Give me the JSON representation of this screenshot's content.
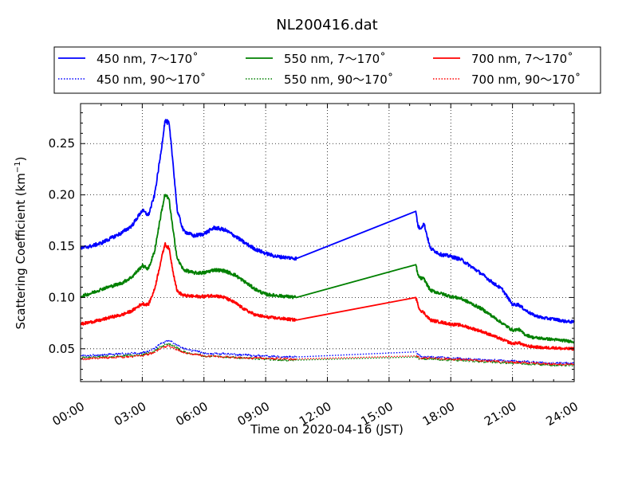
{
  "chart_data": {
    "type": "line",
    "title": "NL200416.dat",
    "xlabel": "Time on 2020-04-16 (JST)",
    "ylabel_main": "Scattering Coefficient (km",
    "ylabel_sup": "−1",
    "ylabel_close": ")",
    "xlim": [
      0,
      24
    ],
    "ylim": [
      0.018,
      0.289
    ],
    "x_ticks": [
      {
        "value": 0,
        "label": "00:00"
      },
      {
        "value": 3,
        "label": "03:00"
      },
      {
        "value": 6,
        "label": "06:00"
      },
      {
        "value": 9,
        "label": "09:00"
      },
      {
        "value": 12,
        "label": "12:00"
      },
      {
        "value": 15,
        "label": "15:00"
      },
      {
        "value": 18,
        "label": "18:00"
      },
      {
        "value": 21,
        "label": "21:00"
      },
      {
        "value": 24,
        "label": "24:00"
      }
    ],
    "y_ticks": [
      {
        "value": 0.05,
        "label": "0.05"
      },
      {
        "value": 0.1,
        "label": "0.10"
      },
      {
        "value": 0.15,
        "label": "0.15"
      },
      {
        "value": 0.2,
        "label": "0.20"
      },
      {
        "value": 0.25,
        "label": "0.25"
      }
    ],
    "grid": true,
    "legend_position": "top",
    "series": [
      {
        "name": "450 nm, 7～170˚",
        "color": "#0000ff",
        "style": "solid",
        "x": [
          0,
          0.5,
          1,
          1.5,
          2,
          2.5,
          3,
          3.3,
          3.6,
          3.9,
          4.1,
          4.3,
          4.5,
          4.7,
          5,
          5.5,
          6,
          6.5,
          7,
          7.5,
          8,
          8.5,
          9,
          9.5,
          10,
          10.5,
          16.3,
          16.4,
          16.5,
          16.7,
          17,
          17.5,
          18,
          18.5,
          19,
          19.5,
          20,
          20.5,
          21,
          21.3,
          21.6,
          22,
          22.5,
          23,
          23.5,
          24
        ],
        "y": [
          0.148,
          0.15,
          0.153,
          0.158,
          0.163,
          0.17,
          0.185,
          0.18,
          0.2,
          0.24,
          0.272,
          0.27,
          0.23,
          0.185,
          0.165,
          0.16,
          0.162,
          0.168,
          0.166,
          0.16,
          0.153,
          0.147,
          0.143,
          0.14,
          0.139,
          0.138,
          0.184,
          0.17,
          0.167,
          0.172,
          0.148,
          0.142,
          0.14,
          0.137,
          0.13,
          0.123,
          0.115,
          0.108,
          0.093,
          0.093,
          0.088,
          0.083,
          0.08,
          0.079,
          0.077,
          0.076
        ]
      },
      {
        "name": "550 nm, 7～170˚",
        "color": "#008000",
        "style": "solid",
        "x": [
          0,
          0.5,
          1,
          1.5,
          2,
          2.5,
          3,
          3.3,
          3.6,
          3.9,
          4.1,
          4.3,
          4.5,
          4.7,
          5,
          5.5,
          6,
          6.5,
          7,
          7.5,
          8,
          8.5,
          9,
          9.5,
          10,
          10.5,
          16.3,
          16.4,
          16.5,
          16.7,
          17,
          17.5,
          18,
          18.5,
          19,
          19.5,
          20,
          20.5,
          21,
          21.3,
          21.6,
          22,
          22.5,
          23,
          23.5,
          24
        ],
        "y": [
          0.101,
          0.104,
          0.108,
          0.111,
          0.114,
          0.12,
          0.131,
          0.128,
          0.145,
          0.18,
          0.2,
          0.196,
          0.165,
          0.138,
          0.127,
          0.124,
          0.124,
          0.127,
          0.126,
          0.122,
          0.115,
          0.108,
          0.103,
          0.102,
          0.101,
          0.1,
          0.132,
          0.122,
          0.119,
          0.118,
          0.107,
          0.104,
          0.101,
          0.099,
          0.094,
          0.089,
          0.082,
          0.075,
          0.068,
          0.069,
          0.064,
          0.061,
          0.06,
          0.059,
          0.058,
          0.057
        ]
      },
      {
        "name": "700 nm, 7～170˚",
        "color": "#ff0000",
        "style": "solid",
        "x": [
          0,
          0.5,
          1,
          1.5,
          2,
          2.5,
          3,
          3.3,
          3.6,
          3.9,
          4.1,
          4.3,
          4.5,
          4.7,
          5,
          5.5,
          6,
          6.5,
          7,
          7.5,
          8,
          8.5,
          9,
          9.5,
          10,
          10.5,
          16.3,
          16.4,
          16.5,
          16.7,
          17,
          17.5,
          18,
          18.5,
          19,
          19.5,
          20,
          20.5,
          21,
          21.3,
          21.6,
          22,
          22.5,
          23,
          23.5,
          24
        ],
        "y": [
          0.074,
          0.076,
          0.078,
          0.081,
          0.083,
          0.087,
          0.094,
          0.093,
          0.108,
          0.135,
          0.152,
          0.148,
          0.125,
          0.106,
          0.102,
          0.101,
          0.101,
          0.102,
          0.1,
          0.095,
          0.088,
          0.083,
          0.081,
          0.08,
          0.079,
          0.078,
          0.1,
          0.093,
          0.088,
          0.085,
          0.078,
          0.076,
          0.074,
          0.073,
          0.07,
          0.067,
          0.063,
          0.059,
          0.055,
          0.056,
          0.053,
          0.052,
          0.051,
          0.051,
          0.05,
          0.05
        ]
      },
      {
        "name": "450 nm, 90～170˚",
        "color": "#0000ff",
        "style": "dotted",
        "x": [
          0,
          1,
          2,
          3,
          3.5,
          4,
          4.3,
          4.6,
          5,
          6,
          7,
          8,
          9,
          10,
          10.5,
          16.3,
          16.5,
          17,
          18,
          19,
          20,
          21,
          22,
          23,
          24
        ],
        "y": [
          0.043,
          0.044,
          0.045,
          0.046,
          0.049,
          0.056,
          0.058,
          0.055,
          0.05,
          0.046,
          0.045,
          0.044,
          0.043,
          0.042,
          0.042,
          0.047,
          0.043,
          0.042,
          0.041,
          0.04,
          0.039,
          0.038,
          0.037,
          0.036,
          0.036
        ]
      },
      {
        "name": "550 nm, 90～170˚",
        "color": "#008000",
        "style": "dotted",
        "x": [
          0,
          1,
          2,
          3,
          3.5,
          4,
          4.3,
          4.6,
          5,
          6,
          7,
          8,
          9,
          10,
          10.5,
          16.3,
          16.5,
          17,
          18,
          19,
          20,
          21,
          22,
          23,
          24
        ],
        "y": [
          0.041,
          0.042,
          0.043,
          0.044,
          0.047,
          0.053,
          0.055,
          0.052,
          0.047,
          0.043,
          0.042,
          0.041,
          0.04,
          0.039,
          0.039,
          0.042,
          0.04,
          0.04,
          0.039,
          0.038,
          0.037,
          0.036,
          0.035,
          0.034,
          0.034
        ]
      },
      {
        "name": "700 nm, 90～170˚",
        "color": "#ff0000",
        "style": "dotted",
        "x": [
          0,
          1,
          2,
          3,
          3.5,
          4,
          4.3,
          4.6,
          5,
          6,
          7,
          8,
          9,
          10,
          10.5,
          16.3,
          16.5,
          17,
          18,
          19,
          20,
          21,
          22,
          23,
          24
        ],
        "y": [
          0.04,
          0.041,
          0.042,
          0.043,
          0.046,
          0.051,
          0.053,
          0.05,
          0.046,
          0.043,
          0.042,
          0.041,
          0.041,
          0.04,
          0.04,
          0.043,
          0.041,
          0.041,
          0.04,
          0.039,
          0.038,
          0.037,
          0.036,
          0.035,
          0.035
        ]
      }
    ]
  }
}
